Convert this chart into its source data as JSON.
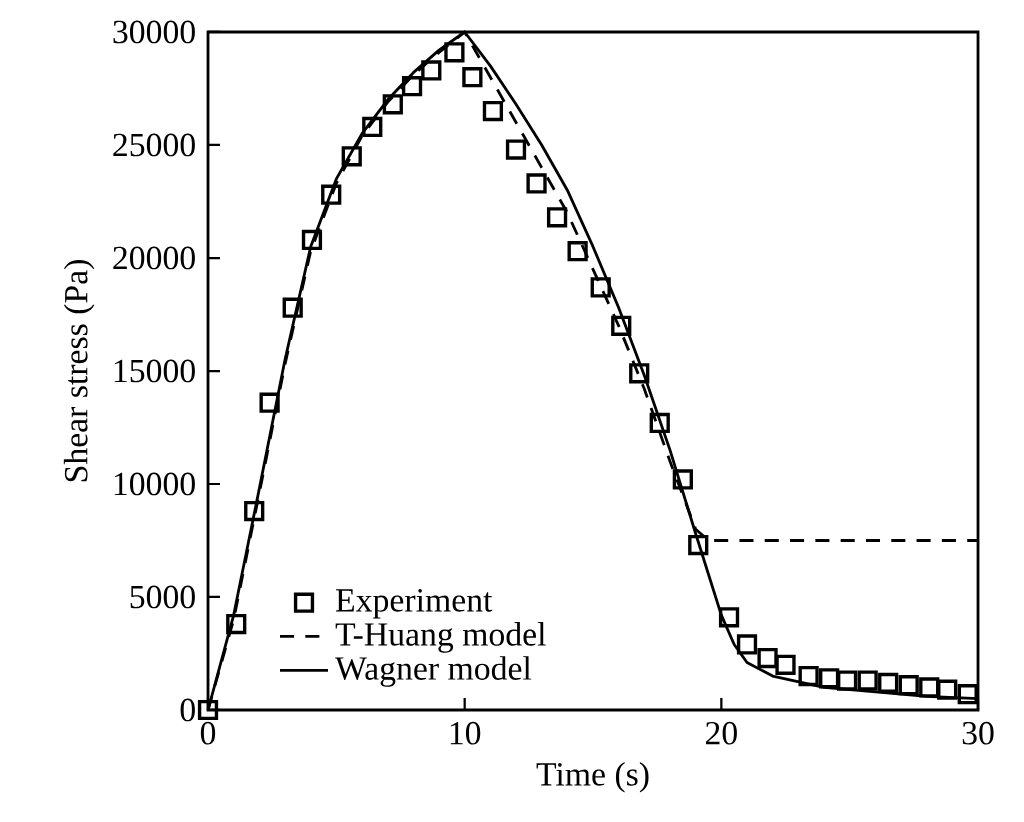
{
  "chart_data": {
    "type": "line",
    "xlabel": "Time (s)",
    "ylabel": "Shear stress (Pa)",
    "xlim": [
      0,
      30
    ],
    "xticks": [
      0,
      10,
      20,
      30
    ],
    "ylim": [
      0,
      30000
    ],
    "yticks": [
      0,
      5000,
      10000,
      15000,
      20000,
      25000,
      30000
    ],
    "grid": false,
    "legend": "bottom left",
    "series": [
      {
        "name": "Experiment",
        "type": "scatter",
        "marker": "square",
        "color": "#000000",
        "x": [
          0,
          1.1,
          1.8,
          2.4,
          3.3,
          4.05,
          4.8,
          5.6,
          6.4,
          7.2,
          7.95,
          8.7,
          9.6,
          10.3,
          11.1,
          12.0,
          12.8,
          13.6,
          14.4,
          15.3,
          16.1,
          16.8,
          17.6,
          18.5,
          19.1,
          20.3,
          21.0,
          21.8,
          22.5,
          23.4,
          24.2,
          24.9,
          25.7,
          26.5,
          27.3,
          28.1,
          28.8,
          29.6
        ],
        "values": [
          0,
          3800,
          8800,
          13600,
          17800,
          20800,
          22800,
          24500,
          25800,
          26800,
          27600,
          28300,
          29100,
          28000,
          26500,
          24800,
          23300,
          21800,
          20300,
          18700,
          17000,
          14900,
          12700,
          10200,
          7300,
          4100,
          2900,
          2300,
          2000,
          1500,
          1400,
          1300,
          1300,
          1200,
          1100,
          1000,
          900,
          700
        ]
      },
      {
        "name": "T-Huang model",
        "line_style": "dashed",
        "color": "#000000",
        "x": [
          0,
          1,
          2,
          3,
          4,
          5,
          6,
          7,
          8,
          9,
          10,
          11,
          12,
          13,
          14,
          15,
          16,
          17,
          18,
          19,
          19.5,
          30
        ],
        "values": [
          0,
          4000,
          9600,
          15300,
          20300,
          23300,
          25400,
          26900,
          28100,
          29100,
          30000,
          28000,
          26000,
          24000,
          22000,
          19500,
          17000,
          14200,
          11000,
          8000,
          7500,
          7500
        ]
      },
      {
        "name": "Wagner model",
        "line_style": "solid",
        "color": "#000000",
        "x": [
          0,
          1,
          2,
          3,
          4,
          5,
          6,
          7,
          8,
          9,
          10,
          11,
          12,
          13,
          14,
          15,
          16,
          17,
          18,
          19,
          20,
          20.5,
          21,
          22,
          24,
          26,
          28,
          30
        ],
        "values": [
          0,
          4200,
          9800,
          15500,
          20500,
          23500,
          25500,
          27000,
          28200,
          29200,
          30000,
          28500,
          26800,
          25000,
          23000,
          20500,
          17800,
          14800,
          11500,
          7800,
          4200,
          2900,
          2100,
          1500,
          1000,
          800,
          600,
          500
        ]
      }
    ]
  }
}
